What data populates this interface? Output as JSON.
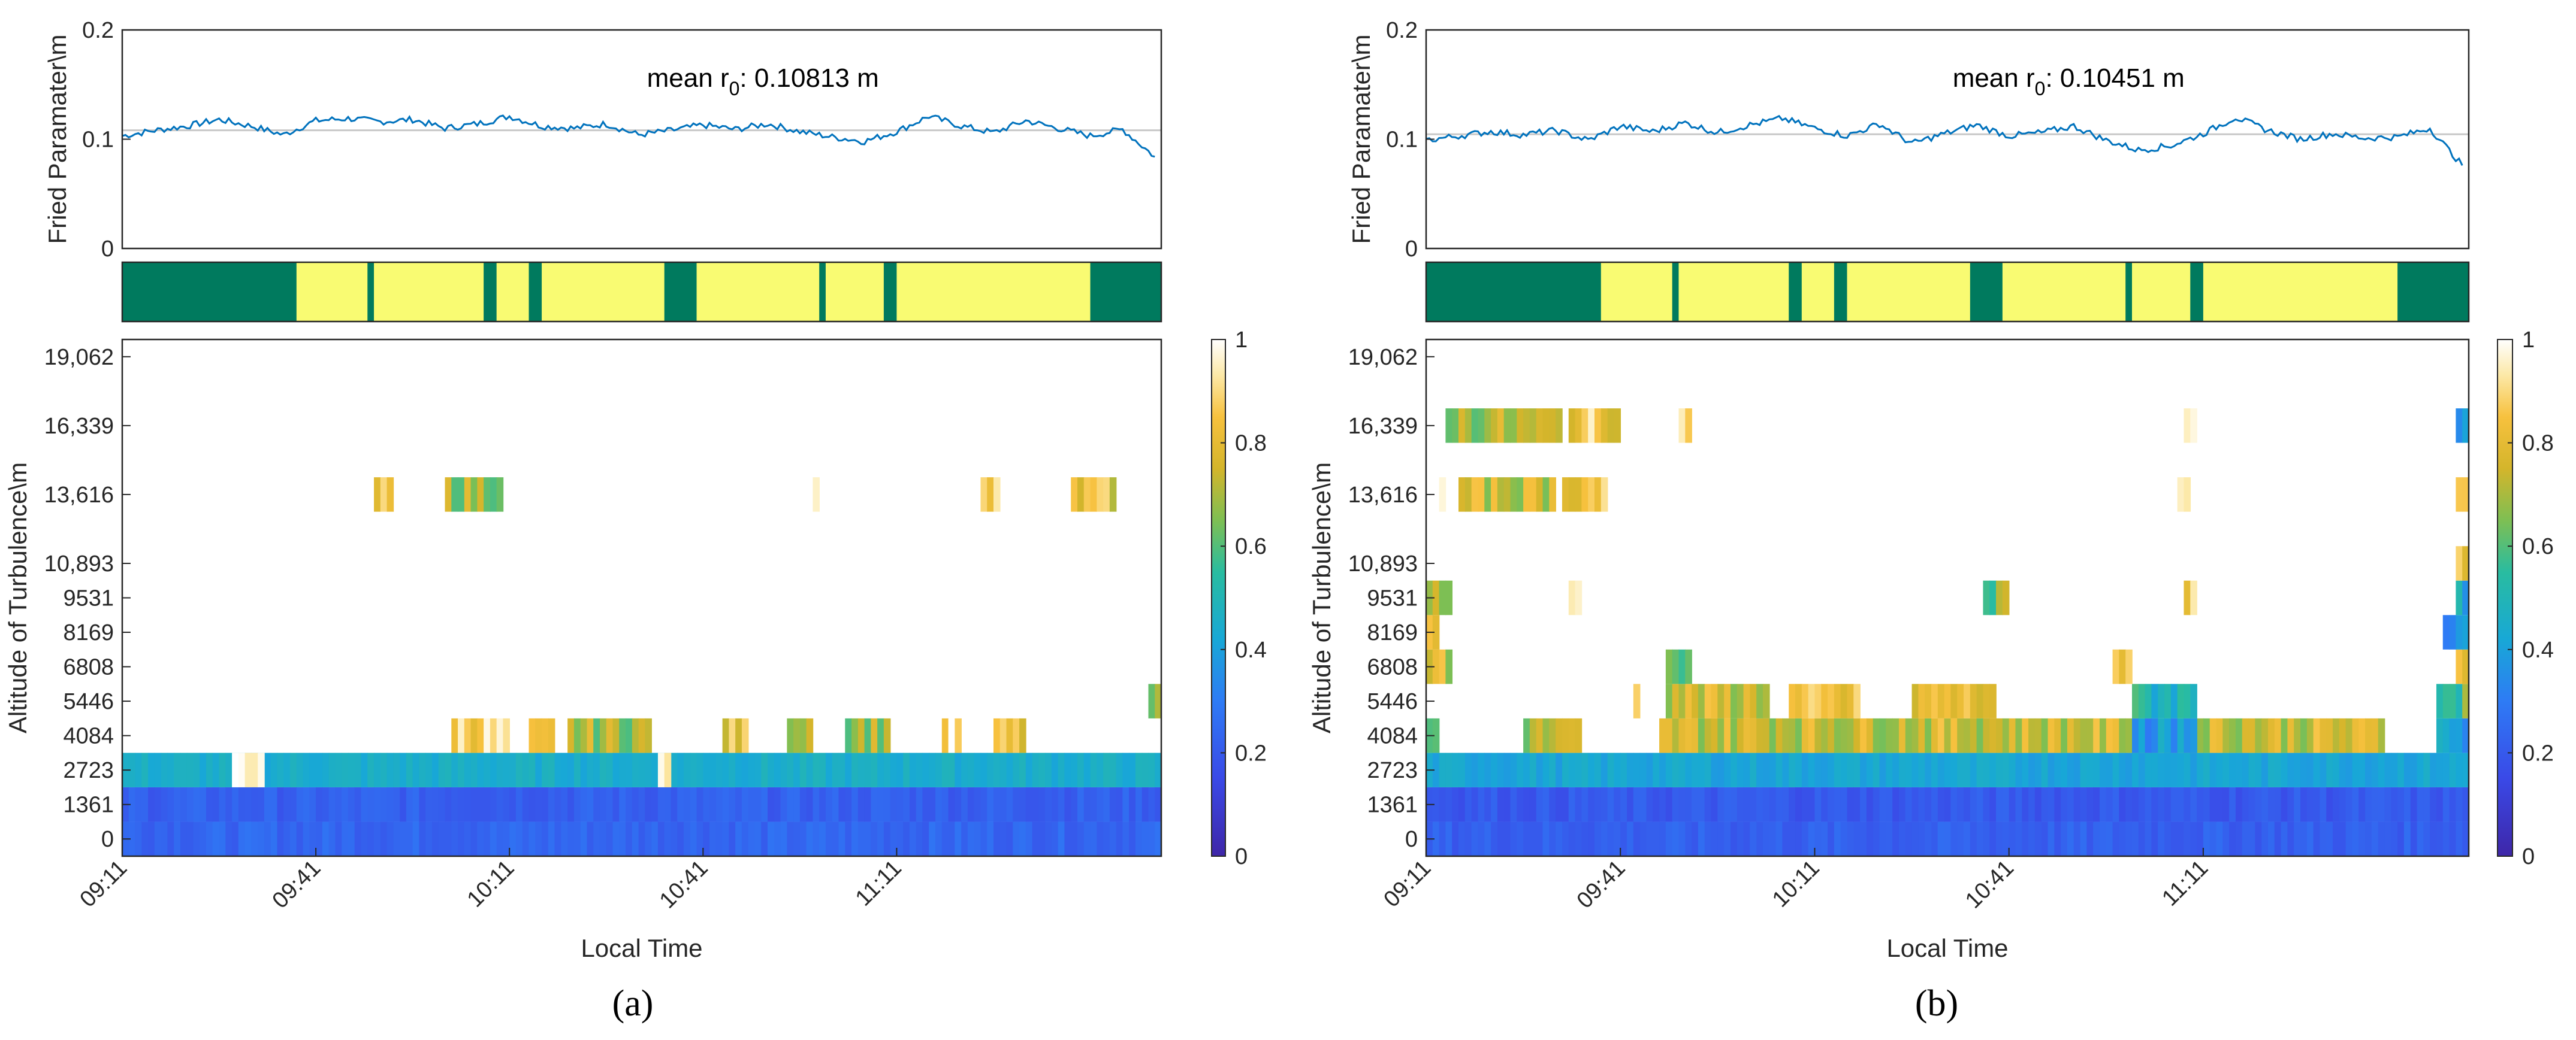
{
  "figure": {
    "panel_labels": [
      "(a)",
      "(b)"
    ]
  },
  "colorbar": {
    "ticks": [
      "0",
      "0.2",
      "0.4",
      "0.6",
      "0.8",
      "1"
    ]
  },
  "chart_data": [
    {
      "panel": "(a)",
      "fried": {
        "type": "line",
        "ylabel": "Fried Paramater\\m",
        "yticks": [
          "0",
          "0.1",
          "0.2"
        ],
        "ylim": [
          0,
          0.2
        ],
        "annotation_prefix": "mean r",
        "annotation_sub": "0",
        "annotation_value": ": 0.10813 m",
        "mean": 0.10813,
        "x_min": [
          0,
          5,
          10,
          15,
          20,
          25,
          30,
          35,
          40,
          45,
          50,
          55,
          60,
          65,
          70,
          75,
          80,
          85,
          90,
          95,
          100,
          105,
          110,
          115,
          120,
          125,
          130,
          135,
          140,
          145,
          150,
          155,
          160
        ],
        "r0": [
          0.103,
          0.108,
          0.112,
          0.118,
          0.112,
          0.104,
          0.117,
          0.119,
          0.116,
          0.118,
          0.11,
          0.114,
          0.121,
          0.112,
          0.11,
          0.114,
          0.104,
          0.108,
          0.113,
          0.109,
          0.114,
          0.107,
          0.102,
          0.098,
          0.107,
          0.121,
          0.112,
          0.106,
          0.117,
          0.11,
          0.103,
          0.109,
          0.084
        ]
      },
      "state_bar": {
        "colors": {
          "0": "#007a5e",
          "1": "#f9fb72"
        },
        "segments": [
          [
            0,
            27,
            0
          ],
          [
            27,
            38,
            1
          ],
          [
            38,
            39,
            0
          ],
          [
            39,
            56,
            1
          ],
          [
            56,
            58,
            0
          ],
          [
            58,
            63,
            1
          ],
          [
            63,
            65,
            0
          ],
          [
            65,
            84,
            1
          ],
          [
            84,
            89,
            0
          ],
          [
            89,
            108,
            1
          ],
          [
            108,
            109,
            0
          ],
          [
            109,
            118,
            1
          ],
          [
            118,
            120,
            0
          ],
          [
            120,
            150,
            1
          ],
          [
            150,
            161,
            0
          ]
        ]
      },
      "heatmap": {
        "type": "heatmap",
        "xlabel": "Local Time",
        "ylabel": "Altitude of Turbulence\\m",
        "xticks": [
          {
            "min": 0,
            "label": "09:11"
          },
          {
            "min": 30,
            "label": "09:41"
          },
          {
            "min": 60,
            "label": "10:11"
          },
          {
            "min": 90,
            "label": "10:41"
          },
          {
            "min": 120,
            "label": "11:11"
          }
        ],
        "x_range_min": [
          0,
          161
        ],
        "altitudes": [
          "0",
          "1361",
          "2723",
          "4084",
          "5446",
          "6808",
          "8169",
          "9531",
          "10,893",
          "13,616",
          "16,339",
          "19,062"
        ],
        "altitude_positions": [
          0,
          1,
          2,
          3,
          4,
          5,
          6,
          7,
          8,
          10,
          12,
          14
        ],
        "y_range": [
          -0.5,
          14.5
        ],
        "vmin": 0,
        "vmax": 1,
        "layers": [
          {
            "row": 0,
            "value": 0.24
          },
          {
            "row": 1,
            "value": 0.22
          },
          {
            "row": 2,
            "value": 0.45
          }
        ],
        "patches": [
          {
            "row": 2,
            "t": [
              17,
              22
            ],
            "value": 1.0
          },
          {
            "row": 2,
            "t": [
              83,
              85
            ],
            "value": 0.9
          },
          {
            "row": 3,
            "t": [
              51,
              60
            ],
            "value": 0.9
          },
          {
            "row": 3,
            "t": [
              63,
              67
            ],
            "value": 0.75
          },
          {
            "row": 3,
            "t": [
              69,
              82
            ],
            "value": 0.7
          },
          {
            "row": 3,
            "t": [
              93,
              97
            ],
            "value": 0.8
          },
          {
            "row": 3,
            "t": [
              103,
              107
            ],
            "value": 0.75
          },
          {
            "row": 3,
            "t": [
              112,
              119
            ],
            "value": 0.7
          },
          {
            "row": 3,
            "t": [
              127,
              130
            ],
            "value": 0.9
          },
          {
            "row": 3,
            "t": [
              135,
              140
            ],
            "value": 0.8
          },
          {
            "row": 4,
            "t": [
              159,
              161
            ],
            "value": 0.6
          },
          {
            "row": 10,
            "t": [
              39,
              42
            ],
            "value": 0.8
          },
          {
            "row": 10,
            "t": [
              50,
              59
            ],
            "value": 0.7
          },
          {
            "row": 10,
            "t": [
              64,
              65
            ],
            "value": 0.95
          },
          {
            "row": 10,
            "t": [
              107,
              108
            ],
            "value": 0.9
          },
          {
            "row": 10,
            "t": [
              133,
              136
            ],
            "value": 0.85
          },
          {
            "row": 10,
            "t": [
              147,
              154
            ],
            "value": 0.8
          }
        ]
      }
    },
    {
      "panel": "(b)",
      "fried": {
        "type": "line",
        "ylabel": "Fried Paramater\\m",
        "yticks": [
          "0",
          "0.1",
          "0.2"
        ],
        "ylim": [
          0,
          0.2
        ],
        "annotation_prefix": "mean r",
        "annotation_sub": "0",
        "annotation_value": ": 0.10451 m",
        "mean": 0.10451,
        "x_min": [
          0,
          5,
          10,
          15,
          20,
          25,
          30,
          35,
          40,
          45,
          50,
          55,
          60,
          65,
          70,
          75,
          80,
          85,
          90,
          95,
          100,
          105,
          110,
          115,
          120,
          125,
          130,
          135,
          140,
          145,
          150,
          155,
          160
        ],
        "r0": [
          0.099,
          0.103,
          0.107,
          0.104,
          0.108,
          0.099,
          0.112,
          0.107,
          0.115,
          0.106,
          0.113,
          0.119,
          0.11,
          0.103,
          0.114,
          0.096,
          0.105,
          0.113,
          0.103,
          0.106,
          0.112,
          0.099,
          0.09,
          0.094,
          0.105,
          0.12,
          0.108,
          0.1,
          0.105,
          0.101,
          0.102,
          0.11,
          0.076
        ]
      },
      "state_bar": {
        "colors": {
          "0": "#007a5e",
          "1": "#f9fb72"
        },
        "segments": [
          [
            0,
            27,
            0
          ],
          [
            27,
            38,
            1
          ],
          [
            38,
            39,
            0
          ],
          [
            39,
            56,
            1
          ],
          [
            56,
            58,
            0
          ],
          [
            58,
            63,
            1
          ],
          [
            63,
            65,
            0
          ],
          [
            65,
            84,
            1
          ],
          [
            84,
            89,
            0
          ],
          [
            89,
            108,
            1
          ],
          [
            108,
            109,
            0
          ],
          [
            109,
            118,
            1
          ],
          [
            118,
            120,
            0
          ],
          [
            120,
            150,
            1
          ],
          [
            150,
            161,
            0
          ]
        ]
      },
      "heatmap": {
        "type": "heatmap",
        "xlabel": "Local Time",
        "ylabel": "Altitude of Turbulence\\m",
        "xticks": [
          {
            "min": 0,
            "label": "09:11"
          },
          {
            "min": 30,
            "label": "09:41"
          },
          {
            "min": 60,
            "label": "10:11"
          },
          {
            "min": 90,
            "label": "10:41"
          },
          {
            "min": 120,
            "label": "11:11"
          }
        ],
        "x_range_min": [
          0,
          161
        ],
        "altitudes": [
          "0",
          "1361",
          "2723",
          "4084",
          "5446",
          "6808",
          "8169",
          "9531",
          "10,893",
          "13,616",
          "16,339",
          "19,062"
        ],
        "altitude_positions": [
          0,
          1,
          2,
          3,
          4,
          5,
          6,
          7,
          8,
          10,
          12,
          14
        ],
        "y_range": [
          -0.5,
          14.5
        ],
        "vmin": 0,
        "vmax": 1,
        "layers": [
          {
            "row": 0,
            "value": 0.22
          },
          {
            "row": 1,
            "value": 0.2
          },
          {
            "row": 2,
            "value": 0.42
          }
        ],
        "patches": [
          {
            "row": 3,
            "t": [
              0,
              2
            ],
            "value": 0.6
          },
          {
            "row": 3,
            "t": [
              15,
              24
            ],
            "value": 0.7
          },
          {
            "row": 3,
            "t": [
              36,
              148
            ],
            "value": 0.75
          },
          {
            "row": 3,
            "t": [
              109,
              119
            ],
            "value": 0.4
          },
          {
            "row": 3,
            "t": [
              156,
              161
            ],
            "value": 0.4
          },
          {
            "row": 4,
            "t": [
              31,
              33
            ],
            "value": 0.95
          },
          {
            "row": 4,
            "t": [
              37,
              53
            ],
            "value": 0.75
          },
          {
            "row": 4,
            "t": [
              56,
              67
            ],
            "value": 0.8
          },
          {
            "row": 4,
            "t": [
              75,
              88
            ],
            "value": 0.8
          },
          {
            "row": 4,
            "t": [
              109,
              119
            ],
            "value": 0.5
          },
          {
            "row": 4,
            "t": [
              156,
              161
            ],
            "value": 0.6
          },
          {
            "row": 5,
            "t": [
              0,
              4
            ],
            "value": 0.75
          },
          {
            "row": 5,
            "t": [
              37,
              41
            ],
            "value": 0.55
          },
          {
            "row": 5,
            "t": [
              106,
              109
            ],
            "value": 0.8
          },
          {
            "row": 5,
            "t": [
              159,
              161
            ],
            "value": 0.85
          },
          {
            "row": 6,
            "t": [
              0,
              2
            ],
            "value": 0.85
          },
          {
            "row": 6,
            "t": [
              157,
              161
            ],
            "value": 0.4
          },
          {
            "row": 7,
            "t": [
              0,
              4
            ],
            "value": 0.75
          },
          {
            "row": 7,
            "t": [
              22,
              24
            ],
            "value": 0.85
          },
          {
            "row": 7,
            "t": [
              86,
              90
            ],
            "value": 0.65
          },
          {
            "row": 7,
            "t": [
              117,
              119
            ],
            "value": 0.85
          },
          {
            "row": 7,
            "t": [
              159,
              161
            ],
            "value": 0.45
          },
          {
            "row": 8,
            "t": [
              159,
              161
            ],
            "value": 0.85
          },
          {
            "row": 10,
            "t": [
              2,
              3
            ],
            "value": 0.9
          },
          {
            "row": 10,
            "t": [
              5,
              20
            ],
            "value": 0.75
          },
          {
            "row": 10,
            "t": [
              21,
              28
            ],
            "value": 0.85
          },
          {
            "row": 10,
            "t": [
              116,
              118
            ],
            "value": 0.85
          },
          {
            "row": 10,
            "t": [
              159,
              161
            ],
            "value": 0.85
          },
          {
            "row": 12,
            "t": [
              3,
              21
            ],
            "value": 0.7
          },
          {
            "row": 12,
            "t": [
              22,
              30
            ],
            "value": 0.85
          },
          {
            "row": 12,
            "t": [
              38,
              41
            ],
            "value": 0.95
          },
          {
            "row": 12,
            "t": [
              117,
              119
            ],
            "value": 0.9
          },
          {
            "row": 12,
            "t": [
              159,
              161
            ],
            "value": 0.4
          }
        ]
      }
    }
  ]
}
